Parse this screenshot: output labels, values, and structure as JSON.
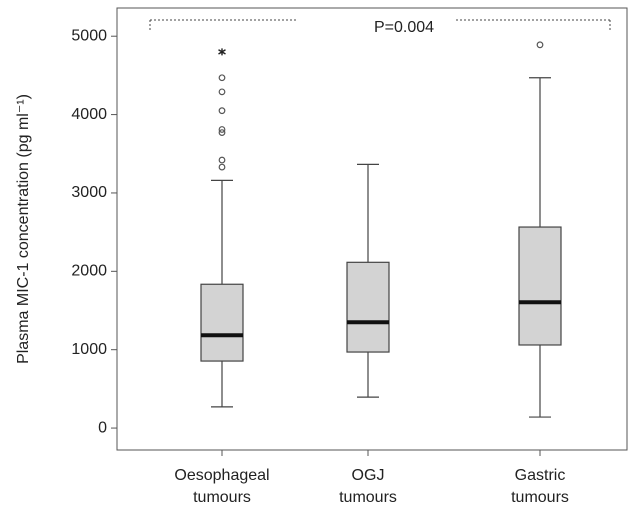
{
  "chart_data": {
    "type": "box",
    "y_label": "Plasma MIC-1 concentration (pg ml⁻¹)",
    "annotation": "P=0.004",
    "categories": [
      "Oesophageal tumours",
      "OGJ tumours",
      "Gastric tumours"
    ],
    "whisker_low": [
      270,
      395,
      140
    ],
    "q1": [
      855,
      970,
      1060
    ],
    "median": [
      1185,
      1350,
      1605
    ],
    "q3": [
      1835,
      2115,
      2565
    ],
    "whisker_high": [
      3160,
      3365,
      4470
    ],
    "outliers": [
      [
        3330,
        3420,
        3770,
        3810,
        4050,
        4290,
        4470
      ],
      [],
      [
        4890
      ]
    ],
    "extremes": [
      [
        4800
      ],
      [],
      []
    ],
    "color": "#d3d3d3",
    "ylim": [
      -280,
      5360
    ],
    "yticks": [
      0,
      1000,
      2000,
      3000,
      4000,
      5000
    ]
  }
}
